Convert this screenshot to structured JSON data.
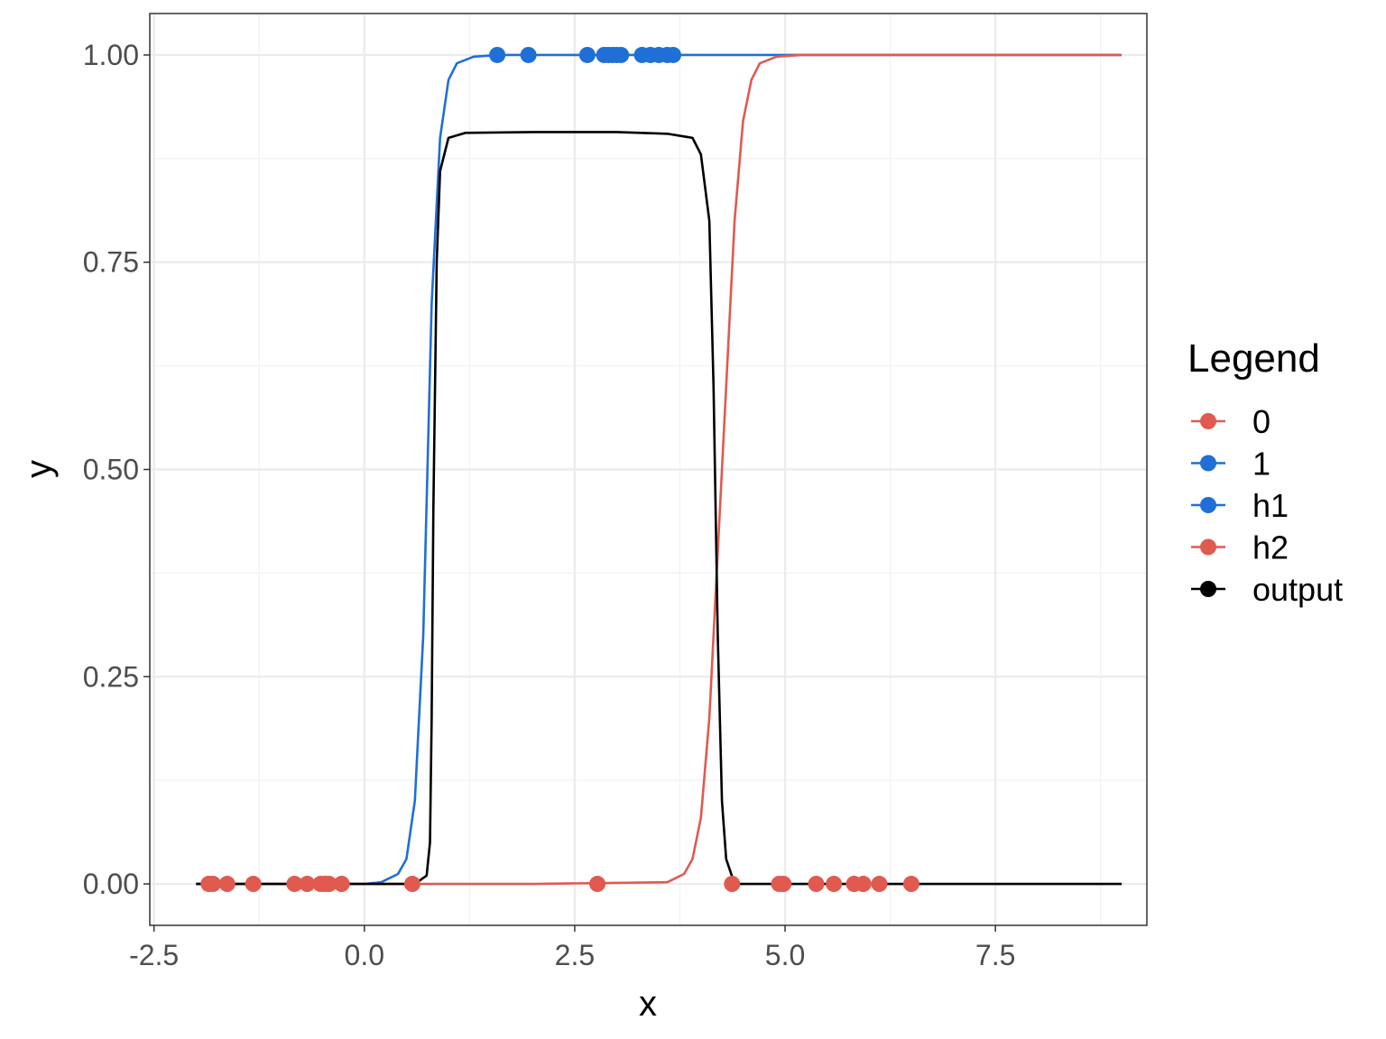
{
  "chart_data": {
    "type": "line",
    "xlabel": "x",
    "ylabel": "y",
    "xlim": [
      -2.55,
      9.3
    ],
    "ylim": [
      -0.05,
      1.05
    ],
    "x_ticks": [
      -2.5,
      0.0,
      2.5,
      5.0,
      7.5
    ],
    "x_tick_labels": [
      "-2.5",
      "0.0",
      "2.5",
      "5.0",
      "7.5"
    ],
    "y_ticks": [
      0.0,
      0.25,
      0.5,
      0.75,
      1.0
    ],
    "y_tick_labels": [
      "0.00",
      "0.25",
      "0.50",
      "0.75",
      "1.00"
    ],
    "grid": true,
    "legend": {
      "title": "Legend",
      "position": "right",
      "entries": [
        {
          "label": "0",
          "color": "#e05a4f"
        },
        {
          "label": "1",
          "color": "#1f6fd6"
        },
        {
          "label": "h1",
          "color": "#1f6fd6"
        },
        {
          "label": "h2",
          "color": "#e05a4f"
        },
        {
          "label": "output",
          "color": "#000000"
        }
      ]
    },
    "curves": [
      {
        "label": "h1",
        "color": "#1f6fd6",
        "x": [
          -2.0,
          0.0,
          0.2,
          0.4,
          0.5,
          0.6,
          0.7,
          0.75,
          0.8,
          0.9,
          1.0,
          1.1,
          1.3,
          1.6,
          2.0,
          3.0,
          5.0,
          7.0,
          9.0
        ],
        "y": [
          0.0,
          0.0,
          0.002,
          0.012,
          0.03,
          0.1,
          0.3,
          0.5,
          0.7,
          0.9,
          0.97,
          0.99,
          0.998,
          1.0,
          1.0,
          1.0,
          1.0,
          1.0,
          1.0
        ]
      },
      {
        "label": "h2",
        "color": "#e05a4f",
        "x": [
          -2.0,
          2.0,
          3.6,
          3.8,
          3.9,
          4.0,
          4.1,
          4.2,
          4.3,
          4.4,
          4.5,
          4.6,
          4.7,
          4.9,
          5.2,
          6.0,
          7.5,
          9.0
        ],
        "y": [
          0.0,
          0.0,
          0.002,
          0.012,
          0.03,
          0.08,
          0.2,
          0.4,
          0.6,
          0.8,
          0.92,
          0.97,
          0.99,
          0.998,
          1.0,
          1.0,
          1.0,
          1.0
        ]
      },
      {
        "label": "output",
        "color": "#000000",
        "x": [
          -2.0,
          0.6,
          0.74,
          0.78,
          0.8,
          0.82,
          0.86,
          0.9,
          1.0,
          1.2,
          2.0,
          3.0,
          3.6,
          3.9,
          4.0,
          4.1,
          4.15,
          4.2,
          4.25,
          4.3,
          4.4,
          5.0,
          9.0
        ],
        "y": [
          0.0,
          0.0,
          0.01,
          0.05,
          0.2,
          0.45,
          0.75,
          0.86,
          0.9,
          0.906,
          0.907,
          0.907,
          0.905,
          0.9,
          0.88,
          0.8,
          0.6,
          0.3,
          0.1,
          0.03,
          0.0,
          0.0,
          0.0
        ]
      }
    ],
    "points": [
      {
        "label": "0",
        "color": "#e05a4f",
        "x": [
          -1.85,
          -1.8,
          -1.63,
          -1.32,
          -0.83,
          -0.68,
          -0.52,
          -0.47,
          -0.42,
          -0.27,
          0.57,
          2.77,
          4.37,
          4.93,
          4.98,
          5.37,
          5.58,
          5.82,
          5.93,
          6.12,
          6.5
        ],
        "y": [
          0,
          0,
          0,
          0,
          0,
          0,
          0,
          0,
          0,
          0,
          0,
          0,
          0,
          0,
          0,
          0,
          0,
          0,
          0,
          0,
          0
        ]
      },
      {
        "label": "1",
        "color": "#1f6fd6",
        "x": [
          1.58,
          1.95,
          2.65,
          2.85,
          2.9,
          2.95,
          3.0,
          3.05,
          3.3,
          3.4,
          3.5,
          3.6,
          3.67
        ],
        "y": [
          1,
          1,
          1,
          1,
          1,
          1,
          1,
          1,
          1,
          1,
          1,
          1,
          1
        ]
      }
    ]
  }
}
